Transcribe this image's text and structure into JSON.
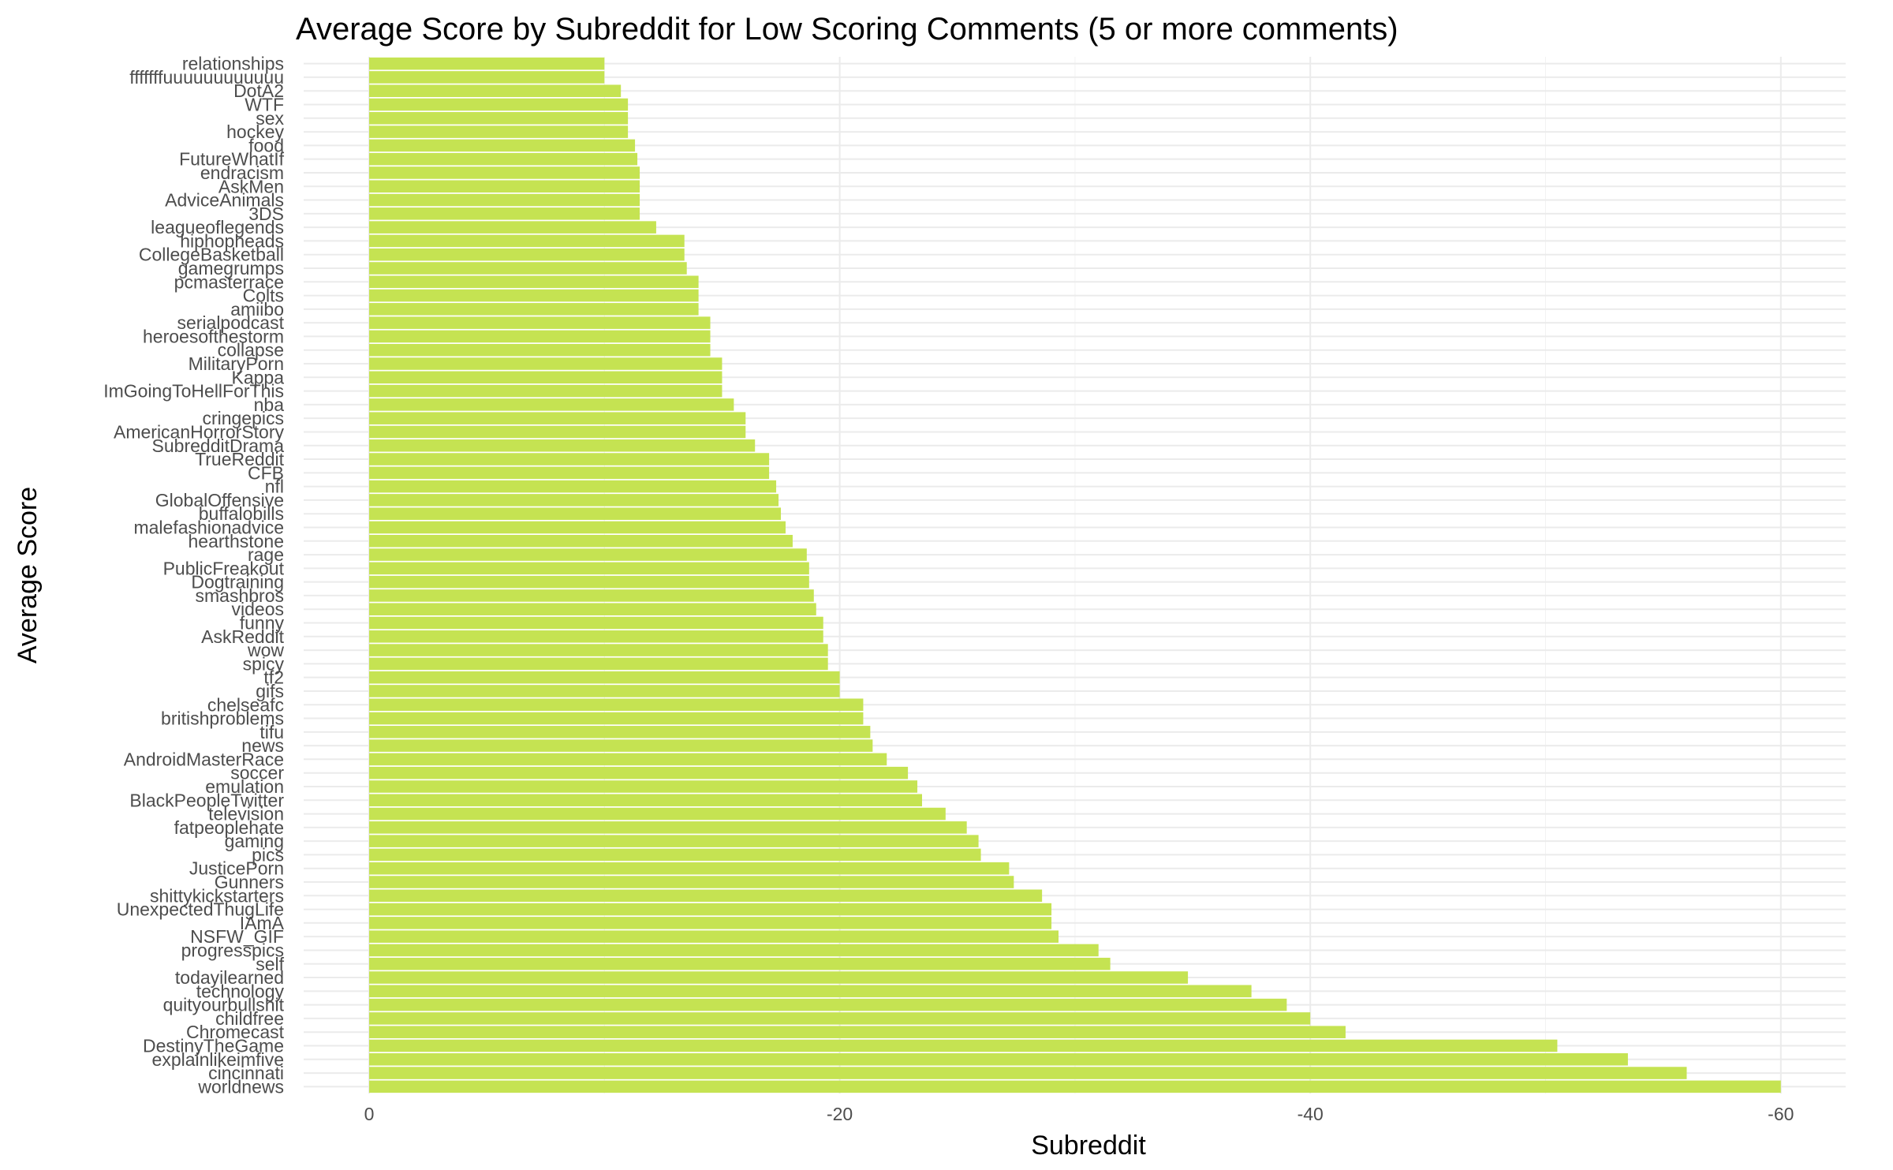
{
  "chart_data": {
    "type": "bar",
    "orientation": "horizontal",
    "title": "Average Score by Subreddit for Low Scoring Comments (5 or more comments)",
    "xlabel": "Subreddit",
    "ylabel": "Average Score",
    "xlim": [
      0,
      -64
    ],
    "xticks": [
      0,
      -20,
      -40,
      -60
    ],
    "grid": true,
    "bar_color": "#c5e352",
    "categories": [
      "relationships",
      "fffffffuuuuuuuuuuuu",
      "DotA2",
      "WTF",
      "sex",
      "hockey",
      "food",
      "FutureWhatIf",
      "endracism",
      "AskMen",
      "AdviceAnimals",
      "3DS",
      "leagueoflegends",
      "hiphopheads",
      "CollegeBasketball",
      "gamegrumps",
      "pcmasterrace",
      "Colts",
      "amiibo",
      "serialpodcast",
      "heroesofthestorm",
      "collapse",
      "MilitaryPorn",
      "Kappa",
      "ImGoingToHellForThis",
      "nba",
      "cringepics",
      "AmericanHorrorStory",
      "SubredditDrama",
      "TrueReddit",
      "CFB",
      "nfl",
      "GlobalOffensive",
      "buffalobills",
      "malefashionadvice",
      "hearthstone",
      "rage",
      "PublicFreakout",
      "Dogtraining",
      "smashbros",
      "videos",
      "funny",
      "AskReddit",
      "wow",
      "spicy",
      "tf2",
      "gifs",
      "chelseafc",
      "britishproblems",
      "tifu",
      "news",
      "AndroidMasterRace",
      "soccer",
      "emulation",
      "BlackPeopleTwitter",
      "television",
      "fatpeoplehate",
      "gaming",
      "pics",
      "JusticePorn",
      "Gunners",
      "shittykickstarters",
      "UnexpectedThugLife",
      "IAmA",
      "NSFW_GIF",
      "progresspics",
      "self",
      "todayilearned",
      "technology",
      "quityourbullshit",
      "childfree",
      "Chromecast",
      "DestinyTheGame",
      "explainlikeimfive",
      "cincinnati",
      "worldnews"
    ],
    "values": [
      -10.0,
      -10.0,
      -10.7,
      -11.0,
      -11.0,
      -11.0,
      -11.3,
      -11.4,
      -11.5,
      -11.5,
      -11.5,
      -11.5,
      -12.2,
      -13.4,
      -13.4,
      -13.5,
      -14.0,
      -14.0,
      -14.0,
      -14.5,
      -14.5,
      -14.5,
      -15.0,
      -15.0,
      -15.0,
      -15.5,
      -16.0,
      -16.0,
      -16.4,
      -17.0,
      -17.0,
      -17.3,
      -17.4,
      -17.5,
      -17.7,
      -18.0,
      -18.6,
      -18.7,
      -18.7,
      -18.9,
      -19.0,
      -19.3,
      -19.3,
      -19.5,
      -19.5,
      -20.0,
      -20.0,
      -21.0,
      -21.0,
      -21.3,
      -21.4,
      -22.0,
      -22.9,
      -23.3,
      -23.5,
      -24.5,
      -25.4,
      -25.9,
      -26.0,
      -27.2,
      -27.4,
      -28.6,
      -29.0,
      -29.0,
      -29.3,
      -31.0,
      -31.5,
      -34.8,
      -37.5,
      -39.0,
      -40.0,
      -41.5,
      -50.5,
      -53.5,
      -56.0,
      -60.0
    ]
  }
}
